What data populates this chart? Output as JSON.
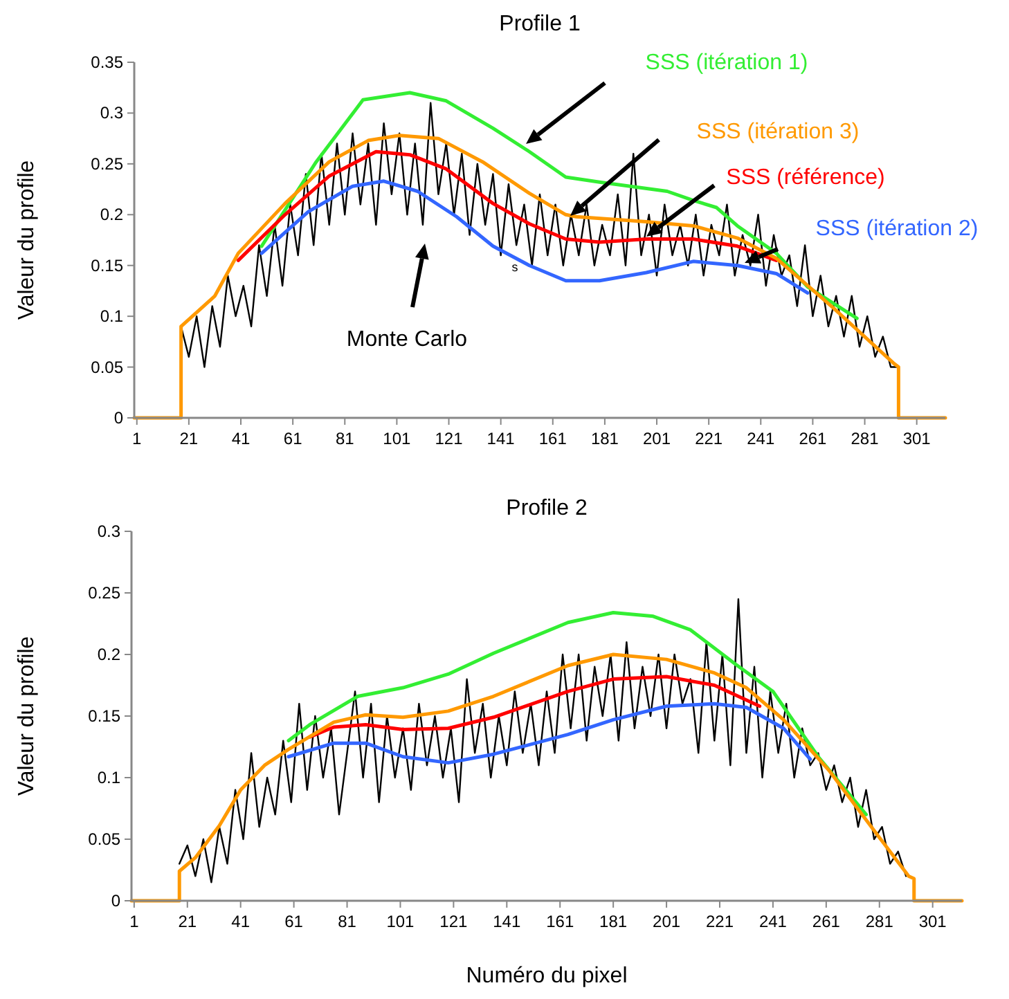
{
  "chart_data": [
    {
      "type": "line",
      "title": "Profile 1",
      "ylabel": "Valeur du profile",
      "xlim": [
        0,
        312
      ],
      "ylim": [
        0,
        0.35
      ],
      "xticks": [
        1,
        21,
        41,
        61,
        81,
        101,
        121,
        141,
        161,
        181,
        201,
        221,
        241,
        261,
        281,
        301
      ],
      "yticks": [
        0,
        0.05,
        0.1,
        0.15,
        0.2,
        0.25,
        0.3,
        0.35
      ],
      "annotations": [
        "s"
      ],
      "series": [
        {
          "name": "Monte Carlo",
          "color": "#000000",
          "x": [
            18,
            21,
            24,
            27,
            30,
            33,
            36,
            39,
            42,
            45,
            48,
            51,
            54,
            57,
            60,
            63,
            66,
            69,
            72,
            75,
            78,
            81,
            84,
            87,
            90,
            93,
            96,
            99,
            102,
            105,
            108,
            111,
            114,
            117,
            120,
            123,
            126,
            129,
            132,
            135,
            138,
            141,
            144,
            147,
            150,
            153,
            156,
            159,
            162,
            165,
            168,
            171,
            174,
            177,
            180,
            183,
            186,
            189,
            192,
            195,
            198,
            201,
            204,
            207,
            210,
            213,
            216,
            219,
            222,
            225,
            228,
            231,
            234,
            237,
            240,
            243,
            246,
            249,
            252,
            255,
            258,
            261,
            264,
            267,
            270,
            273,
            276,
            279,
            282,
            285,
            288,
            291,
            294
          ],
          "values": [
            0.09,
            0.06,
            0.1,
            0.05,
            0.11,
            0.07,
            0.14,
            0.1,
            0.13,
            0.09,
            0.17,
            0.12,
            0.19,
            0.13,
            0.21,
            0.16,
            0.24,
            0.17,
            0.26,
            0.19,
            0.27,
            0.2,
            0.28,
            0.21,
            0.27,
            0.19,
            0.29,
            0.22,
            0.28,
            0.2,
            0.27,
            0.19,
            0.31,
            0.22,
            0.27,
            0.2,
            0.26,
            0.18,
            0.25,
            0.19,
            0.24,
            0.16,
            0.23,
            0.17,
            0.21,
            0.15,
            0.22,
            0.16,
            0.21,
            0.15,
            0.2,
            0.16,
            0.21,
            0.15,
            0.19,
            0.16,
            0.22,
            0.15,
            0.26,
            0.16,
            0.2,
            0.14,
            0.21,
            0.16,
            0.19,
            0.15,
            0.2,
            0.14,
            0.19,
            0.16,
            0.21,
            0.14,
            0.18,
            0.15,
            0.2,
            0.13,
            0.18,
            0.14,
            0.16,
            0.11,
            0.17,
            0.1,
            0.14,
            0.09,
            0.12,
            0.08,
            0.12,
            0.07,
            0.1,
            0.06,
            0.08,
            0.05,
            0.05
          ]
        },
        {
          "name": "SSS (itération 1)",
          "color": "#33ee33",
          "x": [
            49,
            70,
            88,
            106,
            120,
            138,
            152,
            166,
            179,
            205,
            215,
            224,
            232,
            247,
            259,
            278
          ],
          "values": [
            0.169,
            0.252,
            0.313,
            0.32,
            0.312,
            0.285,
            0.262,
            0.237,
            0.232,
            0.223,
            0.214,
            0.207,
            0.189,
            0.162,
            0.129,
            0.098
          ]
        },
        {
          "name": "SSS (itération 2)",
          "color": "#3366ff",
          "x": [
            49,
            67,
            84,
            96,
            109,
            124,
            138,
            152,
            166,
            179,
            197,
            215,
            232,
            247,
            259
          ],
          "values": [
            0.162,
            0.203,
            0.228,
            0.233,
            0.223,
            0.198,
            0.169,
            0.15,
            0.135,
            0.135,
            0.143,
            0.154,
            0.15,
            0.142,
            0.123
          ]
        },
        {
          "name": "SSS (référence)",
          "color": "#ff0000",
          "x": [
            40,
            58,
            75,
            93,
            106,
            120,
            138,
            152,
            166,
            179,
            197,
            215,
            232,
            247
          ],
          "values": [
            0.155,
            0.2,
            0.238,
            0.262,
            0.259,
            0.245,
            0.211,
            0.191,
            0.176,
            0.173,
            0.176,
            0.176,
            0.169,
            0.155
          ]
        },
        {
          "name": "SSS (itération 3)",
          "color": "#ff9900",
          "x": [
            0,
            18,
            18,
            31,
            40,
            58,
            75,
            90,
            102,
            117,
            134,
            152,
            166,
            170,
            197,
            215,
            232,
            247,
            269,
            292,
            294,
            294,
            312
          ],
          "values": [
            0,
            0,
            0.09,
            0.12,
            0.162,
            0.211,
            0.252,
            0.273,
            0.278,
            0.275,
            0.252,
            0.221,
            0.2,
            0.198,
            0.193,
            0.189,
            0.177,
            0.157,
            0.108,
            0.054,
            0.05,
            0,
            0
          ]
        }
      ]
    },
    {
      "type": "line",
      "title": "Profile 2",
      "xlabel": "Numéro du pixel",
      "ylabel": "Valeur du profile",
      "xlim": [
        0,
        312
      ],
      "ylim": [
        0,
        0.3
      ],
      "xticks": [
        1,
        21,
        41,
        61,
        81,
        101,
        121,
        141,
        161,
        181,
        201,
        221,
        241,
        261,
        281,
        301
      ],
      "yticks": [
        0,
        0.05,
        0.1,
        0.15,
        0.2,
        0.25,
        0.3
      ],
      "series": [
        {
          "color": "#000000",
          "x": [
            18,
            21,
            24,
            27,
            30,
            33,
            36,
            39,
            42,
            45,
            48,
            51,
            54,
            57,
            60,
            63,
            66,
            69,
            72,
            75,
            78,
            81,
            84,
            87,
            90,
            93,
            96,
            99,
            102,
            105,
            108,
            111,
            114,
            117,
            120,
            123,
            126,
            129,
            132,
            135,
            138,
            141,
            144,
            147,
            150,
            153,
            156,
            159,
            162,
            165,
            168,
            171,
            174,
            177,
            180,
            183,
            186,
            189,
            192,
            195,
            198,
            201,
            204,
            207,
            210,
            213,
            216,
            219,
            222,
            225,
            228,
            231,
            234,
            237,
            240,
            243,
            246,
            249,
            252,
            255,
            258,
            261,
            264,
            267,
            270,
            273,
            276,
            279,
            282,
            285,
            288,
            291
          ],
          "values": [
            0.03,
            0.045,
            0.02,
            0.05,
            0.015,
            0.06,
            0.03,
            0.09,
            0.05,
            0.12,
            0.06,
            0.1,
            0.07,
            0.13,
            0.08,
            0.16,
            0.09,
            0.15,
            0.1,
            0.14,
            0.07,
            0.12,
            0.17,
            0.1,
            0.16,
            0.08,
            0.15,
            0.1,
            0.14,
            0.09,
            0.16,
            0.11,
            0.15,
            0.1,
            0.14,
            0.08,
            0.18,
            0.12,
            0.16,
            0.1,
            0.15,
            0.11,
            0.17,
            0.12,
            0.16,
            0.11,
            0.17,
            0.12,
            0.2,
            0.14,
            0.2,
            0.13,
            0.19,
            0.15,
            0.2,
            0.13,
            0.21,
            0.14,
            0.19,
            0.15,
            0.2,
            0.14,
            0.2,
            0.16,
            0.18,
            0.12,
            0.21,
            0.13,
            0.2,
            0.11,
            0.245,
            0.12,
            0.19,
            0.1,
            0.17,
            0.12,
            0.16,
            0.1,
            0.14,
            0.11,
            0.12,
            0.09,
            0.11,
            0.08,
            0.1,
            0.06,
            0.09,
            0.05,
            0.06,
            0.03,
            0.04,
            0.02
          ]
        },
        {
          "color": "#33ee33",
          "x": [
            59,
            67,
            85,
            102,
            119,
            136,
            164,
            181,
            196,
            210,
            227,
            241,
            258,
            276
          ],
          "values": [
            0.13,
            0.143,
            0.166,
            0.173,
            0.184,
            0.201,
            0.226,
            0.234,
            0.231,
            0.22,
            0.192,
            0.17,
            0.117,
            0.07
          ]
        },
        {
          "color": "#3366ff",
          "x": [
            59,
            76,
            88,
            102,
            119,
            136,
            164,
            181,
            201,
            219,
            231,
            245,
            255
          ],
          "values": [
            0.117,
            0.128,
            0.128,
            0.117,
            0.112,
            0.119,
            0.135,
            0.147,
            0.158,
            0.16,
            0.157,
            0.14,
            0.115
          ]
        },
        {
          "color": "#ff0000",
          "x": [
            67,
            76,
            88,
            102,
            119,
            136,
            164,
            181,
            201,
            219,
            236
          ],
          "values": [
            0.133,
            0.141,
            0.143,
            0.139,
            0.14,
            0.149,
            0.17,
            0.18,
            0.182,
            0.175,
            0.158
          ]
        },
        {
          "color": "#ff9900",
          "x": [
            0,
            18,
            18,
            24,
            33,
            41,
            50,
            59,
            76,
            88,
            102,
            119,
            136,
            164,
            181,
            201,
            219,
            231,
            245,
            262,
            279,
            292,
            294,
            294,
            312
          ],
          "values": [
            0,
            0,
            0.024,
            0.035,
            0.061,
            0.09,
            0.11,
            0.123,
            0.145,
            0.151,
            0.149,
            0.154,
            0.166,
            0.191,
            0.2,
            0.196,
            0.185,
            0.173,
            0.147,
            0.106,
            0.057,
            0.02,
            0.018,
            0,
            0
          ]
        }
      ]
    }
  ]
}
